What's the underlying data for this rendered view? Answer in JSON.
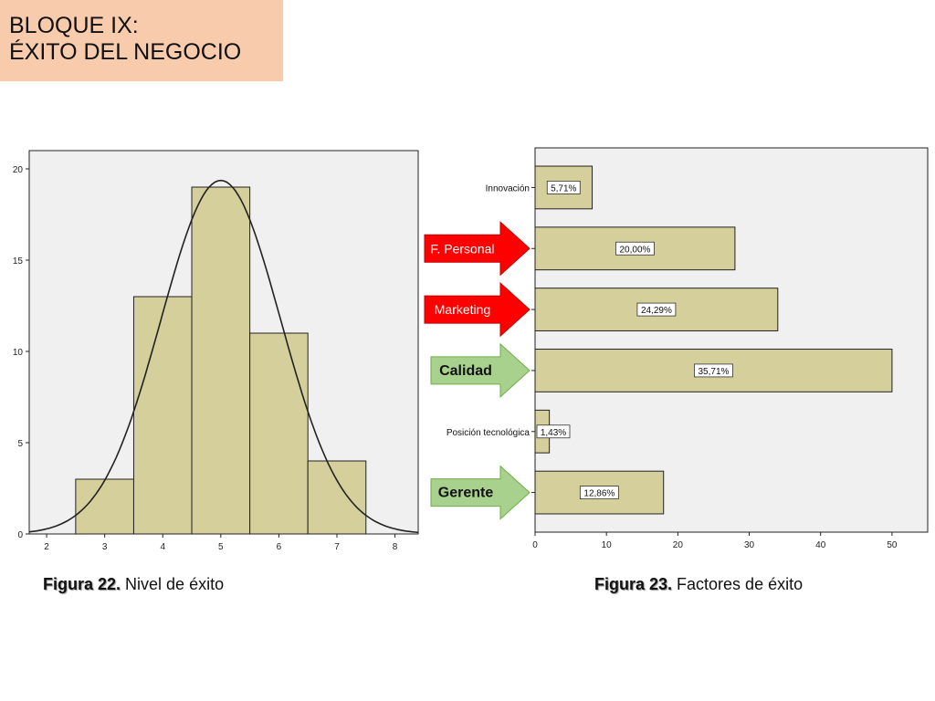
{
  "slide": {
    "title_line1": "BLOQUE IX:",
    "title_line2": "ÉXITO DEL NEGOCIO",
    "colors": {
      "title_bg": "#f8cbad",
      "bar_fill": "#d4cf9b",
      "plot_bg": "#f0f0f0",
      "red_arrow": "#ff0000",
      "green_arrow": "#a9d18e"
    }
  },
  "captions": {
    "fig22_label": "Figura 22.",
    "fig22_text": " Nivel de éxito",
    "fig23_label": "Figura 23.",
    "fig23_text": " Factores de éxito"
  },
  "arrows": [
    {
      "label": "F. Personal",
      "color": "red"
    },
    {
      "label": "Marketing",
      "color": "red"
    },
    {
      "label": "Calidad",
      "color": "green"
    },
    {
      "label": "Gerente",
      "color": "green"
    }
  ],
  "chart_data": [
    {
      "type": "bar",
      "subtype": "histogram-with-normal-curve",
      "title": "",
      "bins": [
        {
          "from": 2.5,
          "to": 3.5,
          "count": 3
        },
        {
          "from": 3.5,
          "to": 4.5,
          "count": 13
        },
        {
          "from": 4.5,
          "to": 5.5,
          "count": 19
        },
        {
          "from": 5.5,
          "to": 6.5,
          "count": 11
        },
        {
          "from": 6.5,
          "to": 7.5,
          "count": 4
        }
      ],
      "normal_curve": {
        "mean": 5.0,
        "sd": 1.03,
        "n": 50,
        "bin_width": 1
      },
      "xlim": [
        1.7,
        8.4
      ],
      "ylim": [
        0,
        21
      ],
      "x_ticks": [
        "2",
        "3",
        "4",
        "5",
        "6",
        "7",
        "8"
      ],
      "y_ticks": [
        "0",
        "5",
        "10",
        "15",
        "20"
      ],
      "grid": false
    },
    {
      "type": "bar",
      "orientation": "horizontal",
      "categories": [
        "Innovación",
        "",
        "",
        "",
        "Posición tecnológica",
        ""
      ],
      "values": [
        8,
        28,
        34,
        50,
        2,
        18
      ],
      "data_labels": [
        "5,71%",
        "20,00%",
        "24,29%",
        "35,71%",
        "1,43%",
        "12,86%"
      ],
      "xlim": [
        0,
        55
      ],
      "x_ticks": [
        "0",
        "10",
        "20",
        "30",
        "40",
        "50"
      ],
      "grid": false
    }
  ]
}
